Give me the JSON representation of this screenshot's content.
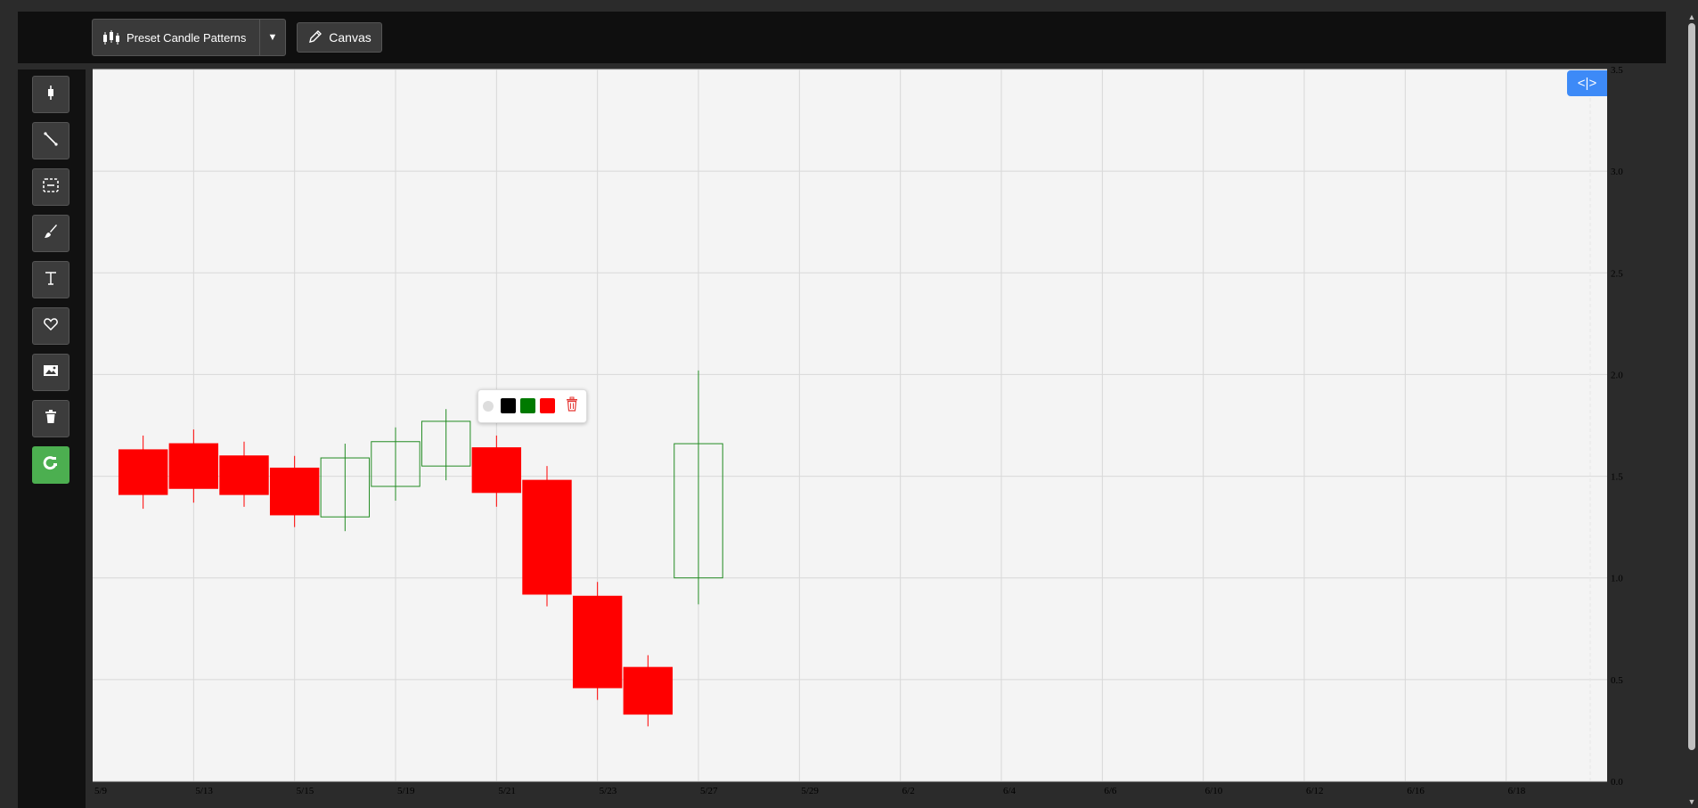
{
  "toolbar": {
    "preset_label": "Preset Candle Patterns",
    "preset_dropdown_glyph": "▼",
    "canvas_label": "Canvas"
  },
  "tools": [
    {
      "name": "candle-tool",
      "icon": "candlestick-icon"
    },
    {
      "name": "line-tool",
      "icon": "line-icon"
    },
    {
      "name": "rect-tool",
      "icon": "selection-rect-icon"
    },
    {
      "name": "brush-tool",
      "icon": "brush-icon"
    },
    {
      "name": "text-tool",
      "icon": "text-icon"
    },
    {
      "name": "favorite-tool",
      "icon": "heart-icon"
    },
    {
      "name": "image-tool",
      "icon": "image-icon"
    },
    {
      "name": "delete-tool",
      "icon": "trash-icon"
    },
    {
      "name": "magnet-tool",
      "icon": "magnet-icon",
      "active": true
    }
  ],
  "toggle_label": "<|>",
  "popup": {
    "colors": [
      "#000000",
      "#007a00",
      "#ff0000"
    ],
    "delete_icon": "trash-icon"
  },
  "colors": {
    "bull": "#228B22",
    "bear": "#ff0000",
    "accent": "#3d8af7",
    "active_tool": "#4caf50"
  },
  "chart_data": {
    "type": "candlestick",
    "ylim": [
      0,
      3.5
    ],
    "yticks": [
      "0.0",
      "0.5",
      "1.0",
      "1.5",
      "2.0",
      "2.5",
      "3.0",
      "3.5"
    ],
    "xticks": [
      "5/9",
      "5/13",
      "5/15",
      "5/19",
      "5/21",
      "5/23",
      "5/27",
      "5/29",
      "6/2",
      "6/4",
      "6/6",
      "6/10",
      "6/12",
      "6/16",
      "6/18"
    ],
    "candles": [
      {
        "slot": 0.5,
        "open": 1.63,
        "high": 1.7,
        "low": 1.34,
        "close": 1.41
      },
      {
        "slot": 1.0,
        "open": 1.66,
        "high": 1.73,
        "low": 1.37,
        "close": 1.44
      },
      {
        "slot": 1.5,
        "open": 1.6,
        "high": 1.67,
        "low": 1.35,
        "close": 1.41
      },
      {
        "slot": 2.0,
        "open": 1.54,
        "high": 1.6,
        "low": 1.25,
        "close": 1.31
      },
      {
        "slot": 2.5,
        "open": 1.3,
        "high": 1.66,
        "low": 1.23,
        "close": 1.59
      },
      {
        "slot": 3.0,
        "open": 1.45,
        "high": 1.74,
        "low": 1.38,
        "close": 1.67
      },
      {
        "slot": 3.5,
        "open": 1.55,
        "high": 1.83,
        "low": 1.48,
        "close": 1.77
      },
      {
        "slot": 4.0,
        "open": 1.64,
        "high": 1.7,
        "low": 1.35,
        "close": 1.42
      },
      {
        "slot": 4.5,
        "open": 1.48,
        "high": 1.55,
        "low": 0.86,
        "close": 0.92
      },
      {
        "slot": 5.0,
        "open": 0.91,
        "high": 0.98,
        "low": 0.4,
        "close": 0.46
      },
      {
        "slot": 5.5,
        "open": 0.56,
        "high": 0.62,
        "low": 0.27,
        "close": 0.33
      },
      {
        "slot": 6.0,
        "open": 1.0,
        "high": 2.02,
        "low": 0.87,
        "close": 1.66
      }
    ]
  }
}
